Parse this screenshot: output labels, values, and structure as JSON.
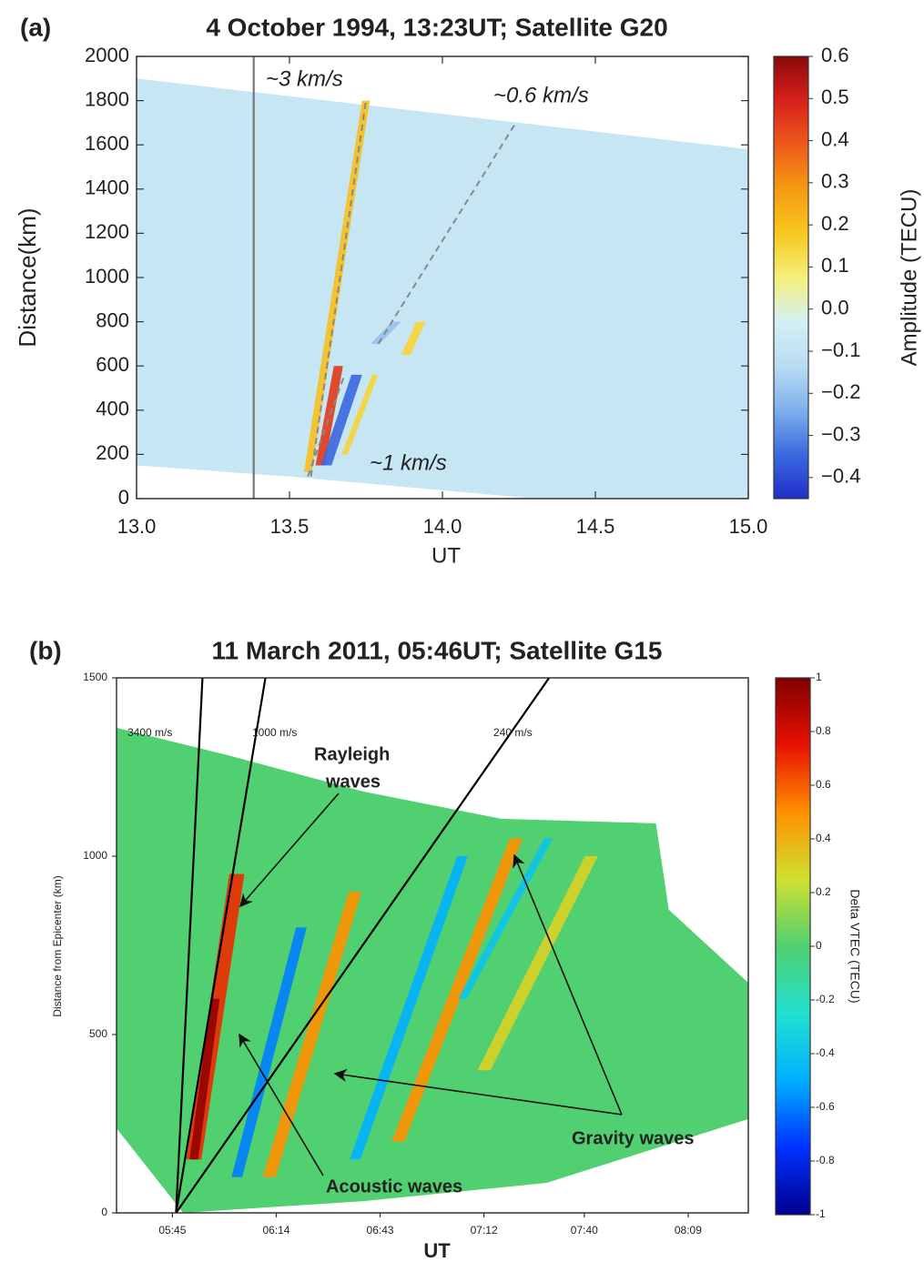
{
  "chart_data": [
    {
      "type": "heatmap",
      "panel_label": "(a)",
      "title": "4 October 1994, 13:23UT; Satellite G20",
      "xlabel": "UT",
      "ylabel": "Distance(km)",
      "colorbar_label": "Amplitude (TECU)",
      "xlim": [
        13.0,
        15.0
      ],
      "ylim": [
        0,
        2000
      ],
      "xticks": [
        {
          "value": 13,
          "label": "13.0"
        },
        13.5,
        {
          "value": 14,
          "label": "14.0"
        },
        14.5,
        {
          "value": 15,
          "label": "15.0"
        }
      ],
      "yticks": [
        0,
        200,
        400,
        600,
        800,
        1000,
        1200,
        1400,
        1600,
        1800,
        2000
      ],
      "clim": [
        -0.45,
        0.6
      ],
      "cticks": [
        0.6,
        0.5,
        0.4,
        0.3,
        0.2,
        0.1,
        {
          "value": 0,
          "label": "0.0"
        },
        {
          "value": -0.1,
          "label": "−0.1"
        },
        {
          "value": -0.2,
          "label": "−0.2"
        },
        {
          "value": -0.3,
          "label": "−0.3"
        },
        {
          "value": -0.4,
          "label": "−0.4"
        }
      ],
      "colormap": [
        "#1f2fc8",
        "#3a6ae0",
        "#7fb0ec",
        "#b8dcf2",
        "#d4f0f4",
        "#f5f07a",
        "#f7c81e",
        "#f59a12",
        "#ee5a1a",
        "#d8201a",
        "#8a0a0a"
      ],
      "background_value": -0.08,
      "coverage": {
        "x": [
          13.0,
          15.0,
          15.0,
          14.3,
          13.5,
          13.0
        ],
        "y": [
          1900,
          1580,
          0,
          0,
          100,
          150
        ]
      },
      "streaks": [
        {
          "x": [
            13.56,
            13.75
          ],
          "y": [
            120,
            1800
          ],
          "width": 0.025,
          "value": 0.2
        },
        {
          "x": [
            13.6,
            13.66
          ],
          "y": [
            150,
            600
          ],
          "width": 0.03,
          "value": 0.45
        },
        {
          "x": [
            13.62,
            13.72
          ],
          "y": [
            150,
            560
          ],
          "width": 0.035,
          "value": -0.35
        },
        {
          "x": [
            13.68,
            13.78
          ],
          "y": [
            200,
            560
          ],
          "width": 0.02,
          "value": 0.15
        },
        {
          "x": [
            13.78,
            13.85
          ],
          "y": [
            700,
            800
          ],
          "width": 0.03,
          "value": -0.2
        },
        {
          "x": [
            13.88,
            13.93
          ],
          "y": [
            650,
            800
          ],
          "width": 0.03,
          "value": 0.15
        }
      ],
      "lines": [
        {
          "x": [
            13.383,
            13.383
          ],
          "y": [
            0,
            2000
          ],
          "color": "#777777",
          "dashed": false
        },
        {
          "x": [
            13.57,
            13.75
          ],
          "y": [
            100,
            1800
          ],
          "color": "#888888",
          "dashed": true,
          "label": "~3 km/s"
        },
        {
          "x": [
            13.79,
            14.24
          ],
          "y": [
            700,
            1700
          ],
          "color": "#888888",
          "dashed": true,
          "label": "~0.6 km/s"
        },
        {
          "x": [
            13.56,
            13.68
          ],
          "y": [
            100,
            560
          ],
          "color": "#888888",
          "dashed": true,
          "label": "~1 km/s"
        }
      ],
      "annotations": []
    },
    {
      "type": "heatmap",
      "panel_label": "(b)",
      "title": "11 March 2011, 05:46UT; Satellite G15",
      "xlabel": "UT",
      "ylabel": "Distance from Epicenter (km)",
      "colorbar_label": "Delta VTEC (TECU)",
      "xlim": [
        5.49,
        8.43
      ],
      "ylim": [
        0,
        1500
      ],
      "xticks": [
        {
          "value": 5.75,
          "label": "05:45"
        },
        {
          "value": 6.2333,
          "label": "06:14"
        },
        {
          "value": 6.7167,
          "label": "06:43"
        },
        {
          "value": 7.2,
          "label": "07:12"
        },
        {
          "value": 7.6667,
          "label": "07:40"
        },
        {
          "value": 8.15,
          "label": "08:09"
        }
      ],
      "yticks": [
        0,
        500,
        1000,
        1500
      ],
      "clim": [
        -1,
        1
      ],
      "cticks": [
        1,
        0.8,
        0.6,
        0.4,
        0.2,
        0,
        -0.2,
        -0.4,
        -0.6,
        -0.8,
        -1
      ],
      "colormap": [
        "#00008f",
        "#0030ff",
        "#00b0ff",
        "#20e0d0",
        "#50d070",
        "#d0e030",
        "#ff9000",
        "#e81000",
        "#800000"
      ],
      "background_value": 0,
      "coverage": {
        "x": [
          5.49,
          6.01,
          6.64,
          7.28,
          8.0,
          8.06,
          8.43,
          8.43,
          7.49,
          6.64,
          5.8,
          5.49
        ],
        "y": [
          1360,
          1283,
          1181,
          1105,
          1092,
          850,
          645,
          263,
          84,
          33,
          0,
          237
        ]
      },
      "streaks": [
        {
          "x": [
            5.85,
            6.05
          ],
          "y": [
            150,
            950
          ],
          "width": 0.07,
          "value": 0.7
        },
        {
          "x": [
            5.85,
            5.95
          ],
          "y": [
            150,
            600
          ],
          "width": 0.04,
          "value": 0.95
        },
        {
          "x": [
            6.05,
            6.35
          ],
          "y": [
            100,
            800
          ],
          "width": 0.05,
          "value": -0.6
        },
        {
          "x": [
            6.2,
            6.6
          ],
          "y": [
            100,
            900
          ],
          "width": 0.06,
          "value": 0.5
        },
        {
          "x": [
            6.6,
            7.1
          ],
          "y": [
            150,
            1000
          ],
          "width": 0.05,
          "value": -0.5
        },
        {
          "x": [
            6.8,
            7.35
          ],
          "y": [
            200,
            1050
          ],
          "width": 0.06,
          "value": 0.5
        },
        {
          "x": [
            7.2,
            7.7
          ],
          "y": [
            400,
            1000
          ],
          "width": 0.06,
          "value": 0.3
        },
        {
          "x": [
            7.1,
            7.5
          ],
          "y": [
            600,
            1050
          ],
          "width": 0.04,
          "value": -0.4
        }
      ],
      "lines": [
        {
          "x": [
            5.767,
            5.89
          ],
          "y": [
            0,
            1500
          ],
          "color": "#000000",
          "dashed": false,
          "label": "3400 m/s"
        },
        {
          "x": [
            5.767,
            6.183
          ],
          "y": [
            0,
            1500
          ],
          "color": "#000000",
          "dashed": false,
          "label": "1000 m/s"
        },
        {
          "x": [
            5.767,
            7.503
          ],
          "y": [
            0,
            1500
          ],
          "color": "#000000",
          "dashed": false,
          "label": "240 m/s"
        }
      ],
      "annotations": [
        {
          "text": [
            "Rayleigh",
            "waves"
          ]
        },
        {
          "text": [
            "Gravity waves"
          ]
        },
        {
          "text": [
            "Acoustic waves"
          ]
        }
      ]
    }
  ]
}
